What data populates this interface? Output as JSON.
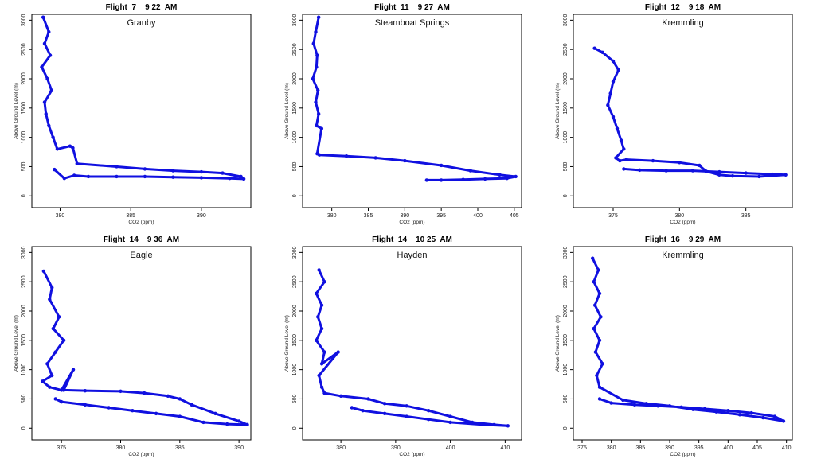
{
  "accent_color": "#1010e0",
  "chart_data": [
    {
      "type": "line",
      "title": "Flight  7    9 22  AM",
      "subtitle": "Granby",
      "xlabel": "CO2 (ppm)",
      "ylabel": "Above Ground Level (m)",
      "xlim": [
        378,
        393.5
      ],
      "ylim": [
        -200,
        3100
      ],
      "xticks": [
        380,
        385,
        390
      ],
      "yticks": [
        0,
        500,
        1000,
        1500,
        2000,
        2500,
        3000
      ],
      "series": [
        {
          "x": [
            378.8,
            379.2,
            378.9,
            379.3,
            378.7,
            379.1,
            379.4,
            378.9,
            379.0,
            379.2,
            379.5,
            379.8,
            380.7,
            380.9,
            381.2,
            384.0,
            386.0,
            388.0,
            390.0,
            391.5,
            392.8,
            393.0,
            392.0,
            390.0,
            388.0,
            386.0,
            384.0,
            382.0,
            381.0,
            380.3,
            379.6
          ],
          "y": [
            3050,
            2800,
            2600,
            2400,
            2200,
            2000,
            1800,
            1600,
            1400,
            1200,
            1000,
            800,
            850,
            820,
            550,
            500,
            460,
            430,
            410,
            390,
            330,
            290,
            300,
            310,
            320,
            330,
            330,
            330,
            350,
            300,
            450
          ]
        }
      ]
    },
    {
      "type": "line",
      "title": "Flight  11    9 27  AM",
      "subtitle": "Steamboat Springs",
      "xlabel": "CO2 (ppm)",
      "ylabel": "Above Ground Level (m)",
      "xlim": [
        376,
        406
      ],
      "ylim": [
        -200,
        3100
      ],
      "xticks": [
        380,
        385,
        390,
        395,
        400,
        405
      ],
      "yticks": [
        0,
        500,
        1000,
        1500,
        2000,
        2500,
        3000
      ],
      "series": [
        {
          "x": [
            378.2,
            377.8,
            377.5,
            378.0,
            377.9,
            377.4,
            378.1,
            377.8,
            378.2,
            377.9,
            378.6,
            378.0,
            378.3,
            382.0,
            386.0,
            390.0,
            395.0,
            399.0,
            403.0,
            405.2,
            404.0,
            401.0,
            398.0,
            395.0,
            393.0
          ],
          "y": [
            3050,
            2800,
            2600,
            2400,
            2200,
            2000,
            1800,
            1600,
            1400,
            1200,
            1150,
            720,
            700,
            680,
            650,
            600,
            520,
            430,
            360,
            330,
            300,
            290,
            280,
            270,
            270
          ]
        }
      ]
    },
    {
      "type": "line",
      "title": "Flight  12    9 18  AM",
      "subtitle": "Kremmling",
      "xlabel": "CO2 (ppm)",
      "ylabel": "Above Ground Level (m)",
      "xlim": [
        372,
        388.5
      ],
      "ylim": [
        -200,
        3100
      ],
      "xticks": [
        375,
        380,
        385
      ],
      "yticks": [
        0,
        500,
        1000,
        1500,
        2000,
        2500,
        3000
      ],
      "series": [
        {
          "x": [
            373.6,
            374.2,
            375.0,
            375.4,
            375.0,
            374.8,
            374.6,
            375.0,
            375.3,
            375.6,
            375.8,
            375.2,
            375.5,
            376.0,
            378.0,
            380.0,
            381.5,
            382.0,
            383.0,
            384.0,
            386.0,
            388.0,
            387.0,
            385.0,
            383.0,
            381.0,
            379.0,
            377.0,
            375.8
          ],
          "y": [
            2520,
            2450,
            2300,
            2150,
            1950,
            1750,
            1550,
            1350,
            1150,
            950,
            800,
            650,
            600,
            620,
            600,
            570,
            520,
            420,
            360,
            340,
            330,
            360,
            370,
            390,
            410,
            430,
            430,
            440,
            460
          ]
        }
      ]
    },
    {
      "type": "line",
      "title": "Flight  14    9 36  AM",
      "subtitle": "Eagle",
      "xlabel": "CO2 (ppm)",
      "ylabel": "Above Ground Level (m)",
      "xlim": [
        372.5,
        391
      ],
      "ylim": [
        -200,
        3100
      ],
      "xticks": [
        375,
        380,
        385,
        390
      ],
      "yticks": [
        0,
        500,
        1000,
        1500,
        2000,
        2500,
        3000
      ],
      "series": [
        {
          "x": [
            373.5,
            374.2,
            374.0,
            374.8,
            374.3,
            375.2,
            374.5,
            373.8,
            374.2,
            373.4,
            374.0,
            375.0,
            376.0,
            375.2,
            377.0,
            380.0,
            382.0,
            384.0,
            385.0,
            386.0,
            388.0,
            390.0,
            390.7,
            389.0,
            387.0,
            385.0,
            383.0,
            381.0,
            379.0,
            377.0,
            375.0,
            374.5
          ],
          "y": [
            2680,
            2400,
            2200,
            1900,
            1700,
            1500,
            1300,
            1100,
            900,
            800,
            700,
            650,
            1000,
            650,
            640,
            630,
            600,
            550,
            500,
            400,
            250,
            120,
            60,
            70,
            100,
            200,
            250,
            300,
            350,
            400,
            450,
            500
          ]
        }
      ]
    },
    {
      "type": "line",
      "title": "Flight  14    10 25  AM",
      "subtitle": "Hayden",
      "xlabel": "CO2 (ppm)",
      "ylabel": "Above Ground Level (m)",
      "xlim": [
        373,
        413
      ],
      "ylim": [
        -200,
        3100
      ],
      "xticks": [
        380,
        390,
        400,
        410
      ],
      "yticks": [
        0,
        500,
        1000,
        1500,
        2000,
        2500,
        3000
      ],
      "series": [
        {
          "x": [
            376.0,
            377.0,
            375.5,
            376.5,
            375.8,
            376.5,
            375.5,
            377.0,
            376.5,
            379.5,
            376.0,
            376.5,
            377.0,
            380.0,
            385.0,
            388.0,
            392.0,
            396.0,
            400.0,
            404.0,
            408.0,
            410.5,
            406.0,
            400.0,
            396.0,
            392.0,
            388.0,
            384.0,
            382.0
          ],
          "y": [
            2700,
            2500,
            2300,
            2100,
            1900,
            1700,
            1500,
            1300,
            1100,
            1300,
            900,
            700,
            600,
            550,
            500,
            420,
            380,
            300,
            200,
            100,
            60,
            40,
            60,
            100,
            150,
            200,
            250,
            300,
            350
          ]
        }
      ]
    },
    {
      "type": "line",
      "title": "Flight  16    9 29  AM",
      "subtitle": "Kremmling",
      "xlabel": "CO2 (ppm)",
      "ylabel": "Above Ground Level (m)",
      "xlim": [
        373.5,
        411
      ],
      "ylim": [
        -200,
        3100
      ],
      "xticks": [
        375,
        380,
        385,
        390,
        395,
        400,
        405,
        410
      ],
      "yticks": [
        0,
        500,
        1000,
        1500,
        2000,
        2500,
        3000
      ],
      "series": [
        {
          "x": [
            376.8,
            377.8,
            377.0,
            378.0,
            377.2,
            378.2,
            377.0,
            378.0,
            377.3,
            378.5,
            377.5,
            378.0,
            382.0,
            386.0,
            390.0,
            394.0,
            398.0,
            402.0,
            406.0,
            409.5,
            408.0,
            404.0,
            400.0,
            396.0,
            392.0,
            388.0,
            384.0,
            380.0,
            378.0
          ],
          "y": [
            2900,
            2700,
            2500,
            2300,
            2100,
            1900,
            1700,
            1500,
            1300,
            1100,
            900,
            700,
            480,
            420,
            380,
            320,
            280,
            230,
            180,
            120,
            200,
            260,
            300,
            330,
            360,
            380,
            400,
            430,
            500
          ]
        }
      ]
    }
  ]
}
